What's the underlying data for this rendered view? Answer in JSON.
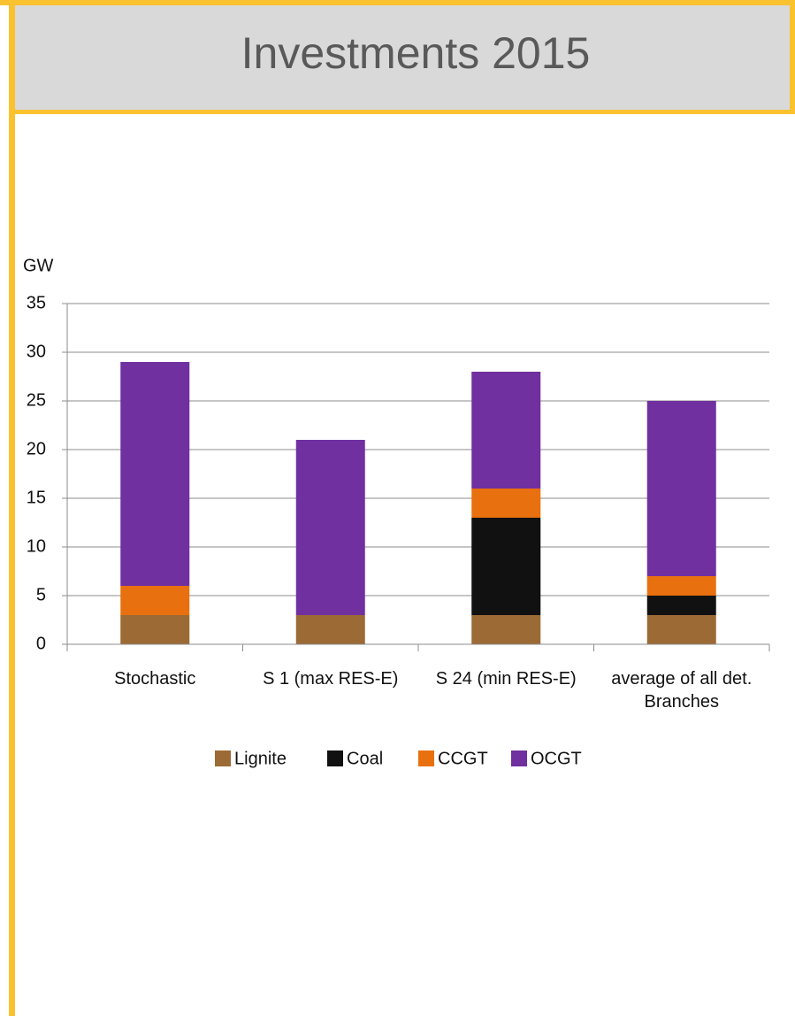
{
  "chart_data": {
    "type": "stacked_bar",
    "title": "Investments 2015",
    "y_label": "GW",
    "categories": [
      "Stochastic",
      "S 1 (max RES-E)",
      "S 24 (min RES-E)",
      "average of all det. Branches"
    ],
    "series": [
      {
        "name": "Lignite",
        "color": "#9c6a35",
        "values": [
          3,
          3,
          3,
          3
        ]
      },
      {
        "name": "Coal",
        "color": "#111111",
        "values": [
          0,
          0,
          10,
          2
        ]
      },
      {
        "name": "CCGT",
        "color": "#e8700f",
        "values": [
          3,
          0,
          3,
          2
        ]
      },
      {
        "name": "OCGT",
        "color": "#7030a0",
        "values": [
          23,
          18,
          12,
          18
        ]
      }
    ],
    "ylim": [
      0,
      35
    ],
    "yticks": [
      0,
      5,
      10,
      15,
      20,
      25,
      30,
      35
    ],
    "grid": true,
    "legend": "bottom"
  }
}
